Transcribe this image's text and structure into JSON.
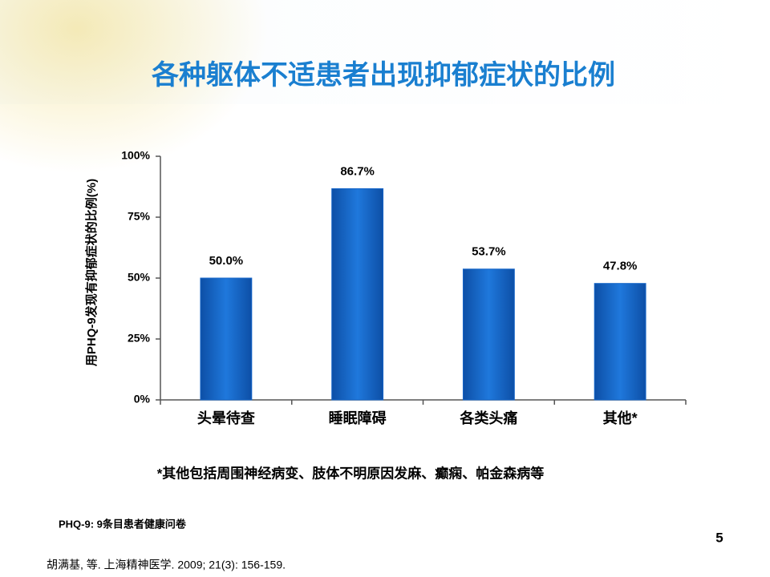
{
  "chart_data": {
    "type": "bar",
    "title": "各种躯体不适患者出现抑郁症状的比例",
    "y_label": "用PHQ-9发现有抑郁症状的比例(%)",
    "categories": [
      "头晕待查",
      "睡眠障碍",
      "各类头痛",
      "其他*"
    ],
    "values": [
      50.0,
      86.7,
      53.7,
      47.8
    ],
    "value_labels": [
      "50.0%",
      "86.7%",
      "53.7%",
      "47.8%"
    ],
    "color": "#1565c8",
    "ylim": [
      0,
      100
    ],
    "yticks": [
      {
        "value": 0,
        "label": "0%"
      },
      {
        "value": 25,
        "label": "25%"
      },
      {
        "value": 50,
        "label": "50%"
      },
      {
        "value": 75,
        "label": "75%"
      },
      {
        "value": 100,
        "label": "100%"
      }
    ],
    "grid": false,
    "annotations": [
      "*其他包括周围神经病变、肢体不明原因发麻、癫痫、帕金森病等"
    ]
  },
  "abbreviation": "PHQ-9:  9条目患者健康问卷",
  "page_number": "5",
  "reference": "胡满基, 等. 上海精神医学. 2009; 21(3): 156-159."
}
